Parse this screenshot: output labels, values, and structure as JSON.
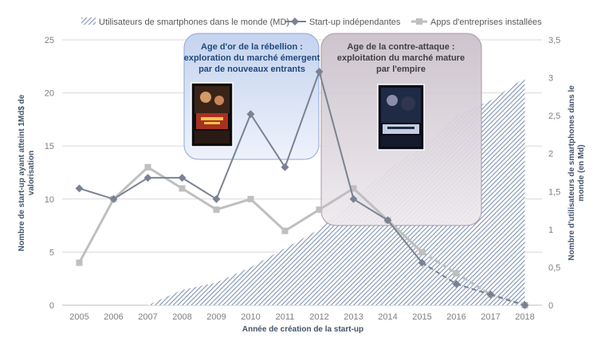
{
  "chart_data": {
    "type": "line",
    "x": [
      "2005",
      "2006",
      "2007",
      "2008",
      "2009",
      "2010",
      "2011",
      "2012",
      "2013",
      "2014",
      "2015",
      "2016",
      "2017",
      "2018"
    ],
    "xlabel": "Année de création de la start-up",
    "ylabel_left": "Nombre de start-up ayant atteint 1Md$ de valorisation",
    "ylabel_right": "Nombre d'utilisateurs de smartphones dans le monde (en Md)",
    "ylim_left": [
      0,
      25
    ],
    "yticks_left": [
      "0",
      "5",
      "10",
      "15",
      "20",
      "25"
    ],
    "ylim_right": [
      0,
      3.5
    ],
    "yticks_right": [
      "0",
      "0,5",
      "1",
      "1,5",
      "2",
      "2,5",
      "3",
      "3,5"
    ],
    "grid": true,
    "legend_position": "top",
    "series": [
      {
        "name": "Utilisateurs de smartphones dans le monde (MD)",
        "type": "area",
        "axis": "right",
        "color": "#8496b0",
        "x": [
          2007,
          2008,
          2009,
          2010,
          2011,
          2012,
          2013,
          2014,
          2015,
          2016,
          2017,
          2018
        ],
        "values": [
          0,
          0.2,
          0.3,
          0.5,
          0.75,
          1.0,
          1.4,
          1.8,
          2.1,
          2.5,
          2.7,
          3.0
        ]
      },
      {
        "name": "Start-up indépendantes",
        "type": "line",
        "axis": "left",
        "color": "#7a8292",
        "marker": "diamond",
        "x": [
          2005,
          2006,
          2007,
          2008,
          2009,
          2010,
          2011,
          2012,
          2013,
          2014,
          2015,
          2016,
          2017,
          2018
        ],
        "values": [
          11,
          10,
          12,
          12,
          10,
          18,
          13,
          22,
          10,
          8,
          4,
          2,
          1,
          0
        ],
        "dashed_from": 2015
      },
      {
        "name": "Apps d'entreprises installées",
        "type": "line",
        "axis": "left",
        "color": "#bfbfbf",
        "marker": "square",
        "x": [
          2005,
          2006,
          2007,
          2008,
          2009,
          2010,
          2011,
          2012,
          2013,
          2014,
          2015,
          2016,
          2017,
          2018
        ],
        "values": [
          4,
          10,
          13,
          11,
          9,
          10,
          7,
          9,
          11,
          8,
          5,
          3,
          1,
          0
        ],
        "dashed_from": 2015
      }
    ]
  },
  "annotations": {
    "box1": {
      "title": "Age d'or de la rébellion :",
      "line2": "exploration du marché émergent",
      "line3": "par de nouveaux entrants",
      "color": "#1f497d",
      "image": "new-hope-poster"
    },
    "box2": {
      "title": "Age de la contre-attaque :",
      "line2": "exploitation du marché mature",
      "line3": "par l'empire",
      "color": "#404040",
      "image": "empire-strikes-back-poster"
    }
  }
}
